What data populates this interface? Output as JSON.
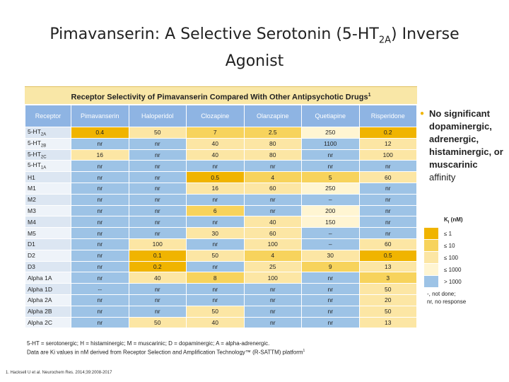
{
  "title": {
    "before": "Pimavanserin: A Selective Serotonin (5-HT",
    "sub": "2A",
    "after": ") Inverse Agonist"
  },
  "table": {
    "title": "Receptor Selectivity of Pimavanserin Compared With Other Antipsychotic Drugs",
    "title_sup": "1",
    "columns": [
      "Receptor",
      "Pimavanserin",
      "Haloperidol",
      "Clozapine",
      "Olanzapine",
      "Quetiapine",
      "Risperidone"
    ],
    "rows": [
      {
        "receptor": "5-HT",
        "sub": "2A",
        "cells": [
          "0.4",
          "50",
          "7",
          "2.5",
          "250",
          "0.2"
        ]
      },
      {
        "receptor": "5-HT",
        "sub": "2B",
        "cells": [
          "nr",
          "nr",
          "40",
          "80",
          "1100",
          "12"
        ]
      },
      {
        "receptor": "5-HT",
        "sub": "2C",
        "cells": [
          "16",
          "nr",
          "40",
          "80",
          "nr",
          "100"
        ]
      },
      {
        "receptor": "5-HT",
        "sub": "1A",
        "cells": [
          "nr",
          "nr",
          "nr",
          "nr",
          "nr",
          "nr"
        ]
      },
      {
        "receptor": "H1",
        "cells": [
          "nr",
          "nr",
          "0.5",
          "4",
          "5",
          "60"
        ]
      },
      {
        "receptor": "M1",
        "cells": [
          "nr",
          "nr",
          "16",
          "60",
          "250",
          "nr"
        ]
      },
      {
        "receptor": "M2",
        "cells": [
          "nr",
          "nr",
          "nr",
          "nr",
          "–",
          "nr"
        ]
      },
      {
        "receptor": "M3",
        "cells": [
          "nr",
          "nr",
          "6",
          "nr",
          "200",
          "nr"
        ]
      },
      {
        "receptor": "M4",
        "cells": [
          "nr",
          "nr",
          "nr",
          "40",
          "150",
          "nr"
        ]
      },
      {
        "receptor": "M5",
        "cells": [
          "nr",
          "nr",
          "30",
          "60",
          "–",
          "nr"
        ]
      },
      {
        "receptor": "D1",
        "cells": [
          "nr",
          "100",
          "nr",
          "100",
          "–",
          "60"
        ]
      },
      {
        "receptor": "D2",
        "cells": [
          "nr",
          "0.1",
          "50",
          "4",
          "30",
          "0.5"
        ]
      },
      {
        "receptor": "D3",
        "cells": [
          "nr",
          "0.2",
          "nr",
          "25",
          "9",
          "13"
        ]
      },
      {
        "receptor": "Alpha 1A",
        "cells": [
          "nr",
          "40",
          "8",
          "100",
          "nr",
          "3"
        ]
      },
      {
        "receptor": "Alpha 1D",
        "cells": [
          "--",
          "nr",
          "nr",
          "nr",
          "nr",
          "50"
        ]
      },
      {
        "receptor": "Alpha 2A",
        "cells": [
          "nr",
          "nr",
          "nr",
          "nr",
          "nr",
          "20"
        ]
      },
      {
        "receptor": "Alpha 2B",
        "cells": [
          "nr",
          "nr",
          "50",
          "nr",
          "nr",
          "50"
        ]
      },
      {
        "receptor": "Alpha 2C",
        "cells": [
          "nr",
          "50",
          "40",
          "nr",
          "nr",
          "13"
        ]
      }
    ]
  },
  "bullet": {
    "bold": "No significant dopaminergic, adrenergic, histaminergic, or muscarinic",
    "normal": "affinity"
  },
  "legend": {
    "title": "K",
    "title_sub": "i",
    "title_after": " (nM)",
    "items": [
      {
        "value": 1,
        "label": "≤ 1",
        "color": "#f0b400"
      },
      {
        "value": 10,
        "label": "≤ 10",
        "color": "#f7d35c"
      },
      {
        "value": 100,
        "label": "≤ 100",
        "color": "#fce6a4"
      },
      {
        "value": 1000,
        "label": "≤ 1000",
        "color": "#fff5d2"
      },
      {
        "value": 1000,
        "label": "> 1000",
        "color": "#9dc3e6"
      }
    ],
    "notes": [
      "-, not done;",
      "nr, no response"
    ]
  },
  "footnotes": {
    "line1": "5-HT = serotonergic; H = histaminergic; M = muscarinic; D = dopaminergic; A = alpha-adrenergic.",
    "line2": "Data are Ki values in nM derived from Receptor Selection and Amplification Technology™ (R-SATTM) platform",
    "line2_sup": "1"
  },
  "reference": "1. Hacksell U et al. Neurochem Res. 2014;39:2008-2017"
}
